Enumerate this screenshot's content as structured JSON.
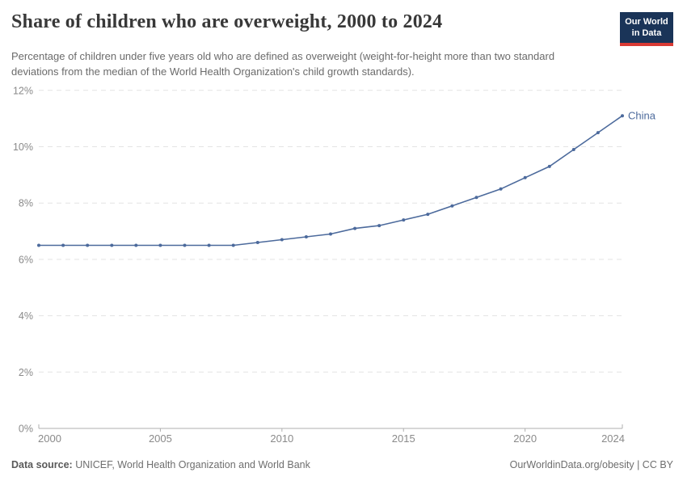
{
  "header": {
    "title": "Share of children who are overweight, 2000 to 2024",
    "subtitle": "Percentage of children under five years old who are defined as overweight (weight-for-height more than two standard deviations from the median of the World Health Organization's child growth standards).",
    "logo": {
      "line1": "Our World",
      "line2": "in Data"
    }
  },
  "chart_data": {
    "type": "line",
    "title": "Share of children who are overweight, 2000 to 2024",
    "x": [
      2000,
      2001,
      2002,
      2003,
      2004,
      2005,
      2006,
      2007,
      2008,
      2009,
      2010,
      2011,
      2012,
      2013,
      2014,
      2015,
      2016,
      2017,
      2018,
      2019,
      2020,
      2021,
      2022,
      2023,
      2024
    ],
    "series": [
      {
        "name": "China",
        "values": [
          6.5,
          6.5,
          6.5,
          6.5,
          6.5,
          6.5,
          6.5,
          6.5,
          6.5,
          6.6,
          6.7,
          6.8,
          6.9,
          7.1,
          7.2,
          7.4,
          7.6,
          7.9,
          8.2,
          8.5,
          8.9,
          9.3,
          9.9,
          10.5,
          11.1
        ]
      }
    ],
    "xlabel": "",
    "ylabel": "",
    "xlim": [
      2000,
      2024
    ],
    "ylim": [
      0,
      12
    ],
    "yticks": [
      0,
      2,
      4,
      6,
      8,
      10,
      12
    ],
    "ytick_labels": [
      "0%",
      "2%",
      "4%",
      "6%",
      "8%",
      "10%",
      "12%"
    ],
    "xticks": [
      2000,
      2005,
      2010,
      2015,
      2020,
      2024
    ],
    "xtick_labels": [
      "2000",
      "2005",
      "2010",
      "2015",
      "2020",
      "2024"
    ],
    "grid": "horizontal-dashed",
    "legend_position": "end-of-line-label"
  },
  "footer": {
    "datasource_label": "Data source:",
    "datasource_text": " UNICEF, World Health Organization and World Bank",
    "credit": "OurWorldinData.org/obesity | CC BY"
  },
  "colors": {
    "line": "#4c6a9c",
    "series_label": "#4c6a9c",
    "grid": "#e3e3e3",
    "axis": "#afafaf",
    "tick_text": "#8a8a8a",
    "title_text": "#383838",
    "subtitle_text": "#6b6b6b",
    "logo_bg": "#1a3458",
    "logo_stripe": "#d93a34"
  }
}
